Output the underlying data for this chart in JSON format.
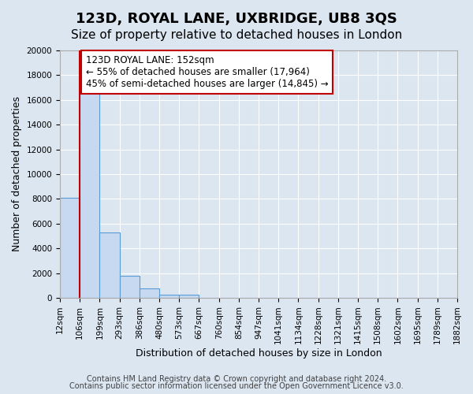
{
  "title": "123D, ROYAL LANE, UXBRIDGE, UB8 3QS",
  "subtitle": "Size of property relative to detached houses in London",
  "xlabel": "Distribution of detached houses by size in London",
  "ylabel": "Number of detached properties",
  "bin_labels": [
    "12sqm",
    "106sqm",
    "199sqm",
    "293sqm",
    "386sqm",
    "480sqm",
    "573sqm",
    "667sqm",
    "760sqm",
    "854sqm",
    "947sqm",
    "1041sqm",
    "1134sqm",
    "1228sqm",
    "1321sqm",
    "1415sqm",
    "1508sqm",
    "1602sqm",
    "1695sqm",
    "1789sqm",
    "1882sqm"
  ],
  "bar_heights": [
    8100,
    16600,
    5300,
    1750,
    750,
    270,
    250,
    0,
    0,
    0,
    0,
    0,
    0,
    0,
    0,
    0,
    0,
    0,
    0,
    0
  ],
  "bar_color": "#c6d9f0",
  "bar_edge_color": "#5b9bd5",
  "property_line_x": 1,
  "property_line_color": "#c00000",
  "ylim": [
    0,
    20000
  ],
  "yticks": [
    0,
    2000,
    4000,
    6000,
    8000,
    10000,
    12000,
    14000,
    16000,
    18000,
    20000
  ],
  "annotation_box_text": "123D ROYAL LANE: 152sqm\n← 55% of detached houses are smaller (17,964)\n45% of semi-detached houses are larger (14,845) →",
  "annotation_box_color": "#ffffff",
  "annotation_box_edge_color": "#c00000",
  "footer_line1": "Contains HM Land Registry data © Crown copyright and database right 2024.",
  "footer_line2": "Contains public sector information licensed under the Open Government Licence v3.0.",
  "background_color": "#dce6f1",
  "plot_bg_color": "#dce6f1",
  "grid_color": "#ffffff",
  "title_fontsize": 13,
  "subtitle_fontsize": 11,
  "axis_label_fontsize": 9,
  "tick_fontsize": 7.5,
  "footer_fontsize": 7
}
